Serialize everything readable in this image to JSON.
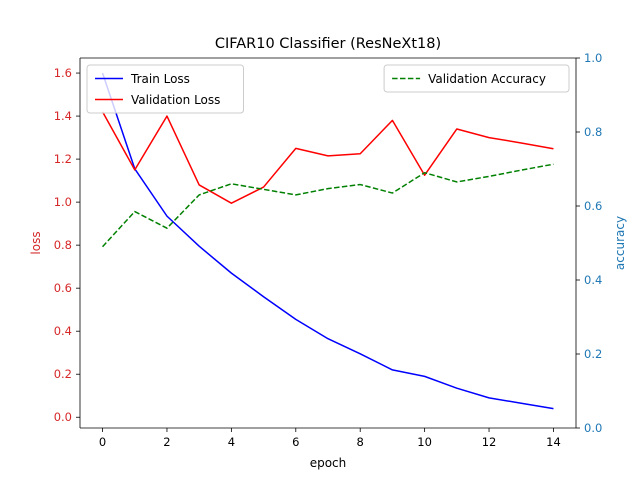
{
  "chart_data": {
    "type": "line",
    "title": "CIFAR10 Classifier (ResNeXt18)",
    "xlabel": "epoch",
    "ylabel_left": "loss",
    "ylabel_right": "accuracy",
    "xlim": [
      -0.7,
      14.7
    ],
    "ylim_left": [
      -0.05,
      1.67
    ],
    "ylim_right": [
      0.0,
      1.0
    ],
    "xticks": [
      0,
      2,
      4,
      6,
      8,
      10,
      12,
      14
    ],
    "yticks_left": [
      0.0,
      0.2,
      0.4,
      0.6,
      0.8,
      1.0,
      1.2,
      1.4,
      1.6
    ],
    "yticks_right": [
      0.0,
      0.2,
      0.4,
      0.6,
      0.8,
      1.0
    ],
    "left_axis_color": "#d62728",
    "right_axis_color": "#1f77b4",
    "grid": false,
    "x": [
      0,
      1,
      2,
      3,
      4,
      5,
      6,
      7,
      8,
      9,
      10,
      11,
      12,
      13,
      14
    ],
    "series": [
      {
        "name": "Train Loss",
        "axis": "left",
        "color": "#0000ff",
        "style": "solid",
        "values": [
          1.6,
          1.155,
          0.935,
          0.795,
          0.67,
          0.56,
          0.455,
          0.365,
          0.295,
          0.22,
          0.19,
          0.135,
          0.09,
          0.065,
          0.04
        ]
      },
      {
        "name": "Validation Loss",
        "axis": "left",
        "color": "#ff0000",
        "style": "solid",
        "values": [
          1.42,
          1.15,
          1.4,
          1.08,
          0.995,
          1.07,
          1.25,
          1.215,
          1.225,
          1.38,
          1.125,
          1.34,
          1.3,
          1.275,
          1.248
        ]
      },
      {
        "name": "Validation Accuracy",
        "axis": "right",
        "color": "#008000",
        "style": "dashed",
        "values": [
          0.49,
          0.585,
          0.54,
          0.63,
          0.66,
          0.645,
          0.63,
          0.647,
          0.658,
          0.635,
          0.69,
          0.665,
          0.68,
          0.697,
          0.713
        ]
      }
    ],
    "legends": [
      {
        "placement": "upper-left",
        "entries": [
          "Train Loss",
          "Validation Loss"
        ]
      },
      {
        "placement": "upper-right",
        "entries": [
          "Validation Accuracy"
        ]
      }
    ]
  }
}
